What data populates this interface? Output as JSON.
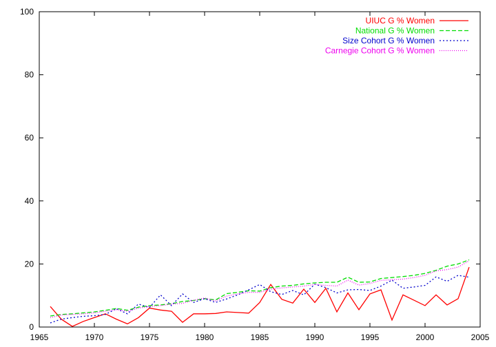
{
  "chart_data": {
    "type": "line",
    "title": "",
    "xlabel": "",
    "ylabel": "",
    "xlim": [
      1965,
      2005
    ],
    "ylim": [
      0,
      100
    ],
    "xticks": [
      1965,
      1970,
      1975,
      1980,
      1985,
      1990,
      1995,
      2000,
      2005
    ],
    "yticks": [
      0,
      20,
      40,
      60,
      80,
      100
    ],
    "grid": false,
    "legend_position": "top-right",
    "x": [
      1966,
      1967,
      1968,
      1969,
      1970,
      1971,
      1972,
      1973,
      1974,
      1975,
      1976,
      1977,
      1978,
      1979,
      1980,
      1981,
      1982,
      1983,
      1984,
      1985,
      1986,
      1987,
      1988,
      1989,
      1990,
      1991,
      1992,
      1993,
      1994,
      1995,
      1996,
      1997,
      1998,
      1999,
      2000,
      2001,
      2002,
      2003,
      2004
    ],
    "series": [
      {
        "name": "UIUC G % Women",
        "color": "#ff0000",
        "dash": "solid",
        "values": [
          6.5,
          2.5,
          0.2,
          1.8,
          3.0,
          4.2,
          2.5,
          1.0,
          3.0,
          6.0,
          5.4,
          5.0,
          1.5,
          4.2,
          4.2,
          4.3,
          4.8,
          4.6,
          4.4,
          7.8,
          13.5,
          8.8,
          7.6,
          12.0,
          7.8,
          12.3,
          4.8,
          10.8,
          5.5,
          10.5,
          11.8,
          2.2,
          10.2,
          8.5,
          6.8,
          10.2,
          7.0,
          9.0,
          19.0
        ]
      },
      {
        "name": "National G % Women",
        "color": "#00dd00",
        "dash": "6,3",
        "values": [
          3.5,
          4.0,
          4.2,
          4.5,
          4.8,
          5.3,
          5.9,
          5.3,
          6.3,
          6.8,
          7.0,
          7.4,
          8.1,
          8.4,
          9.0,
          8.6,
          10.6,
          11.0,
          11.5,
          11.4,
          12.5,
          13.0,
          13.2,
          13.7,
          14.0,
          14.2,
          14.2,
          15.8,
          14.2,
          14.3,
          15.4,
          15.7,
          16.0,
          16.4,
          17.0,
          18.0,
          19.3,
          20.0,
          21.3
        ]
      },
      {
        "name": "Size Cohort G % Women",
        "color": "#0000cc",
        "dash": "2,3",
        "values": [
          1.3,
          2.5,
          3.0,
          3.4,
          3.6,
          4.0,
          5.8,
          4.2,
          7.3,
          6.2,
          10.2,
          6.8,
          10.5,
          7.8,
          9.0,
          7.8,
          8.9,
          10.2,
          11.8,
          13.5,
          11.2,
          10.3,
          11.6,
          10.2,
          13.6,
          12.5,
          10.8,
          11.8,
          11.9,
          11.6,
          13.0,
          14.9,
          12.3,
          12.7,
          13.2,
          15.9,
          14.5,
          16.4,
          15.8
        ]
      },
      {
        "name": "Carnegie Cohort G % Women",
        "color": "#ee00ee",
        "dash": "1,2",
        "values": [
          3.0,
          3.8,
          4.0,
          4.2,
          4.5,
          5.0,
          5.5,
          5.0,
          6.0,
          6.5,
          6.8,
          7.3,
          7.5,
          8.5,
          9.2,
          8.3,
          9.8,
          10.5,
          11.0,
          11.0,
          12.0,
          12.4,
          12.7,
          13.0,
          13.5,
          13.2,
          13.0,
          14.9,
          13.3,
          13.8,
          14.8,
          15.0,
          15.2,
          15.7,
          16.4,
          17.8,
          18.2,
          19.0,
          21.0
        ]
      }
    ]
  }
}
